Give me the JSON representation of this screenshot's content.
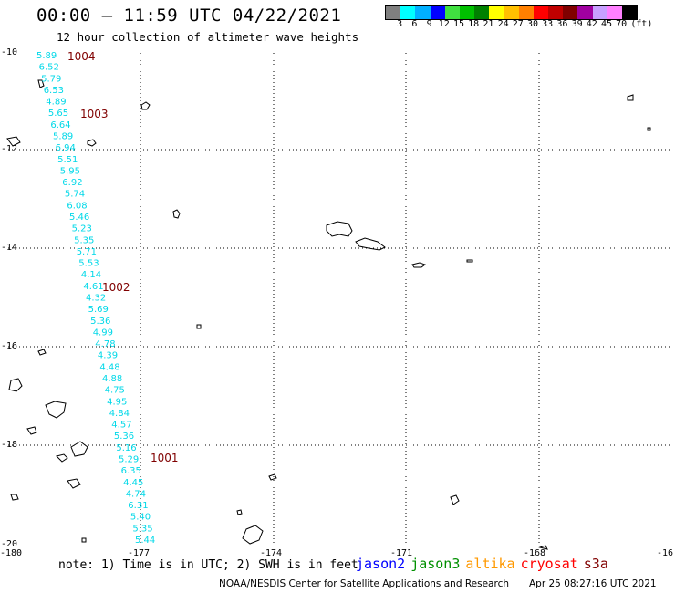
{
  "header": {
    "title": "00:00 — 11:59 UTC 04/22/2021",
    "subtitle": "12 hour collection of altimeter wave heights"
  },
  "legend": {
    "unit": "(ft)",
    "colors": [
      "#7f7f7f",
      "#00ffff",
      "#00b0ff",
      "#0000ff",
      "#40e040",
      "#00c000",
      "#008000",
      "#ffff00",
      "#ffc000",
      "#ff8000",
      "#ff0000",
      "#c00000",
      "#800000",
      "#a000a0",
      "#c8a0ff",
      "#ff80ff",
      "#000000"
    ],
    "labels": [
      "3",
      "6",
      "9",
      "12",
      "15",
      "18",
      "21",
      "24",
      "27",
      "30",
      "33",
      "36",
      "39",
      "42",
      "45",
      "70"
    ]
  },
  "axes": {
    "x_ticks": [
      "-180",
      "-177",
      "-174",
      "-171",
      "-168",
      "-16"
    ],
    "y_ticks": [
      "-10",
      "-12",
      "-14",
      "-16",
      "-18",
      "-20"
    ]
  },
  "track": {
    "color": "#00d8e8",
    "values": [
      "5.89",
      "6.52",
      "5.79",
      "6.53",
      "4.89",
      "5.65",
      "6.64",
      "5.89",
      "6.94",
      "5.51",
      "5.95",
      "6.92",
      "5.74",
      "6.08",
      "5.46",
      "5.23",
      "5.35",
      "5.71",
      "5.53",
      "4.14",
      "4.61",
      "4.32",
      "5.69",
      "5.36",
      "4.99",
      "4.78",
      "4.39",
      "4.48",
      "4.88",
      "4.75",
      "4.95",
      "4.84",
      "4.57",
      "5.36",
      "5.16",
      "5.29",
      "6.35",
      "4.45",
      "4.74",
      "6.31",
      "5.40",
      "5.35",
      "5.44"
    ]
  },
  "time_stamps": [
    "1004",
    "1003",
    "1002",
    "1001"
  ],
  "footer": {
    "note": "note: 1) Time is in UTC; 2) SWH is in feet",
    "missions": [
      {
        "name": "jason2",
        "color": "#0000ff"
      },
      {
        "name": "jason3",
        "color": "#009000"
      },
      {
        "name": "altika",
        "color": "#ff9900"
      },
      {
        "name": "cryosat",
        "color": "#ff0000"
      },
      {
        "name": "s3a",
        "color": "#800000"
      }
    ],
    "credit": "NOAA/NESDIS Center for Satellite Applications and Research",
    "stamp": "Apr 25 08:27:16 UTC 2021"
  }
}
